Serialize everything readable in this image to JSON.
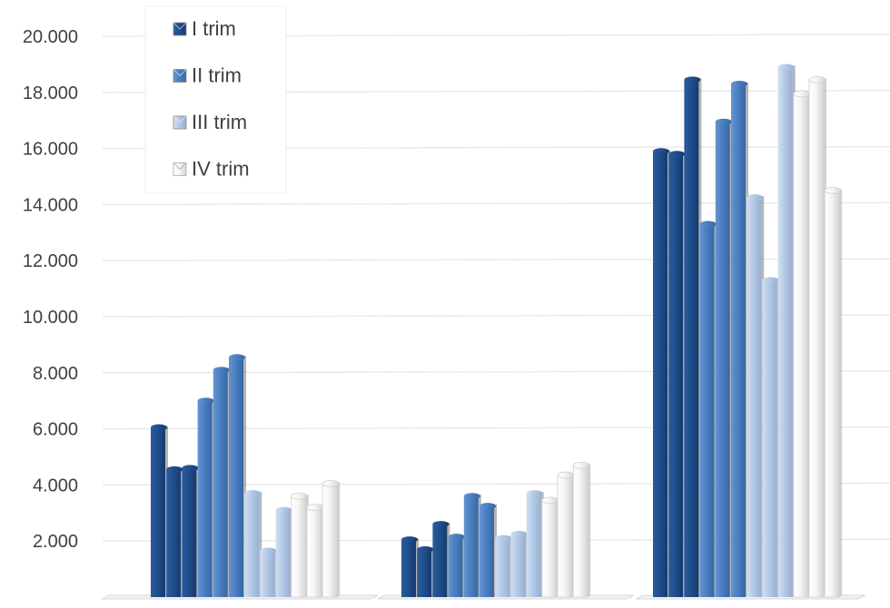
{
  "chart_data": {
    "type": "bar",
    "categories": [
      "",
      "",
      ""
    ],
    "y_ticks": [
      "2.000",
      "4.000",
      "6.000",
      "8.000",
      "10.000",
      "12.000",
      "14.000",
      "16.000",
      "18.000",
      "20.000"
    ],
    "ylim": [
      0,
      20000
    ],
    "grid": true,
    "legend_position": "top-left",
    "series": [
      {
        "name": "I trim",
        "color": "#1f4e8c",
        "values": [
          [
            6050,
            4550,
            4600
          ],
          [
            2050,
            1700,
            2600
          ],
          [
            15900,
            15800,
            18450
          ]
        ]
      },
      {
        "name": "II trim",
        "color": "#4a7fc1",
        "values": [
          [
            7000,
            8100,
            8550
          ],
          [
            2150,
            3600,
            3250
          ],
          [
            13300,
            16950,
            18300
          ]
        ]
      },
      {
        "name": "III trim",
        "color": "#b4c9e6",
        "values": [
          [
            3700,
            1650,
            3100
          ],
          [
            2100,
            2250,
            3700
          ],
          [
            14250,
            11300,
            18900
          ]
        ]
      },
      {
        "name": "IV trim",
        "color": "#f2f2f2",
        "values": [
          [
            3600,
            3200,
            4050
          ],
          [
            3450,
            4350,
            4700
          ],
          [
            17950,
            18450,
            14500
          ]
        ]
      }
    ]
  }
}
